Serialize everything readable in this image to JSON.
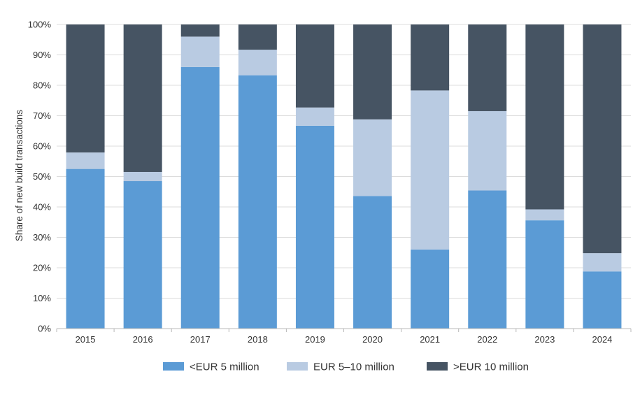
{
  "chart_data": {
    "type": "bar",
    "stacked": true,
    "title": "",
    "xlabel": "",
    "ylabel": "Share of new build transactions",
    "ylim": [
      0,
      100
    ],
    "yticks": [
      "0%",
      "10%",
      "20%",
      "30%",
      "40%",
      "50%",
      "60%",
      "70%",
      "80%",
      "90%",
      "100%"
    ],
    "categories": [
      "2015",
      "2016",
      "2017",
      "2018",
      "2019",
      "2020",
      "2021",
      "2022",
      "2023",
      "2024"
    ],
    "series": [
      {
        "name": "<EUR 5 million",
        "color": "#5b9bd5",
        "values": [
          52.5,
          48.5,
          86,
          83.3,
          66.7,
          43.6,
          26,
          45.4,
          35.6,
          18.8
        ]
      },
      {
        "name": "EUR 5–10 million",
        "color": "#b9cbe2",
        "values": [
          5.4,
          3.0,
          10,
          8.4,
          6.0,
          25.2,
          52.3,
          26.1,
          3.6,
          6.0
        ]
      },
      {
        "name": ">EUR 10 million",
        "color": "#465463",
        "values": [
          42.1,
          48.5,
          4,
          8.3,
          27.3,
          31.2,
          21.7,
          28.5,
          60.8,
          75.2
        ]
      }
    ],
    "legend_position": "bottom",
    "grid": true
  }
}
